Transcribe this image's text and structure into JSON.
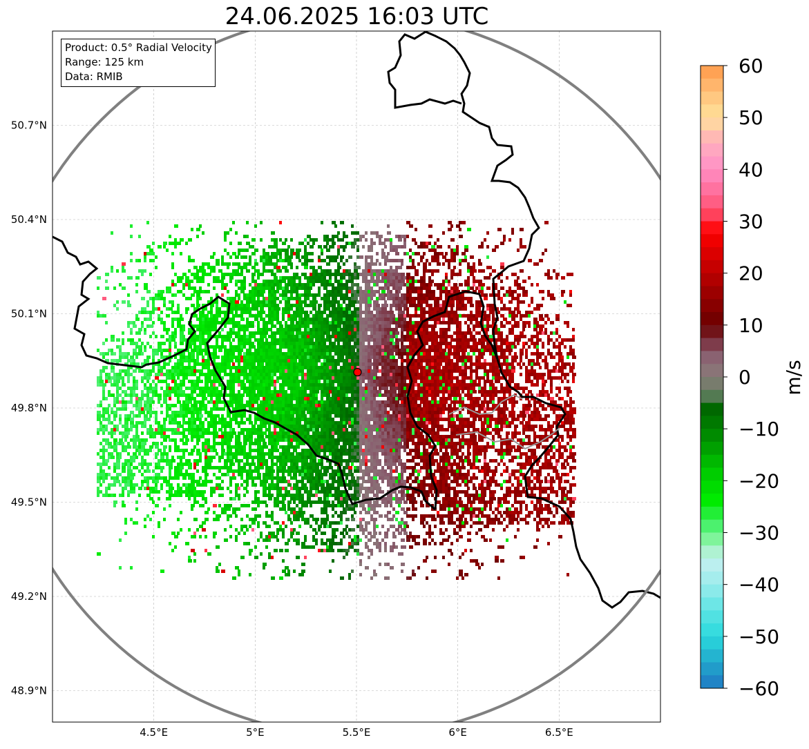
{
  "title": "24.06.2025 16:03 UTC",
  "info_box": {
    "lines": [
      "Product: 0.5° Radial Velocity",
      "Range: 125 km",
      "Data: RMIB"
    ]
  },
  "chart_data": {
    "type": "heatmap",
    "title": "24.06.2025 16:03 UTC",
    "x_axis": {
      "range": [
        4.0,
        7.0
      ],
      "ticks": [
        4.5,
        5.0,
        5.5,
        6.0,
        6.5
      ],
      "tick_labels": [
        "4.5°E",
        "5°E",
        "5.5°E",
        "6°E",
        "6.5°E"
      ]
    },
    "y_axis": {
      "range": [
        48.8,
        51.0
      ],
      "ticks": [
        48.9,
        49.2,
        49.5,
        49.8,
        50.1,
        50.4,
        50.7
      ],
      "tick_labels": [
        "48.9°N",
        "49.2°N",
        "49.5°N",
        "49.8°N",
        "50.1°N",
        "50.4°N",
        "50.7°N"
      ]
    },
    "grid": true,
    "radar_site": {
      "lon": 5.505,
      "lat": 49.914
    },
    "colorbar": {
      "label": "m/s",
      "min": -60,
      "max": 60,
      "ticks": [
        60,
        50,
        40,
        30,
        20,
        10,
        0,
        -10,
        -20,
        -30,
        -40,
        -50,
        -60
      ],
      "tick_labels": [
        "60",
        "50",
        "40",
        "30",
        "20",
        "10",
        "0",
        "−10",
        "−20",
        "−30",
        "−40",
        "−50",
        "−60"
      ],
      "color_stops": [
        {
          "v": -60,
          "c": "#1f78c4"
        },
        {
          "v": -55,
          "c": "#22a8cc"
        },
        {
          "v": -50,
          "c": "#2ad9dd"
        },
        {
          "v": -45,
          "c": "#5ee4e4"
        },
        {
          "v": -40,
          "c": "#9aecec"
        },
        {
          "v": -35,
          "c": "#c6f0f0"
        },
        {
          "v": -32,
          "c": "#8ff5a8"
        },
        {
          "v": -28,
          "c": "#3cf060"
        },
        {
          "v": -24,
          "c": "#00ec00"
        },
        {
          "v": -18,
          "c": "#00c800"
        },
        {
          "v": -12,
          "c": "#009000"
        },
        {
          "v": -6,
          "c": "#006600"
        },
        {
          "v": -4,
          "c": "#4f7a4f"
        },
        {
          "v": 0,
          "c": "#8a7d7a"
        },
        {
          "v": 4,
          "c": "#8a6070"
        },
        {
          "v": 6,
          "c": "#7f4050"
        },
        {
          "v": 10,
          "c": "#6a0000"
        },
        {
          "v": 16,
          "c": "#9a0000"
        },
        {
          "v": 22,
          "c": "#cc0000"
        },
        {
          "v": 28,
          "c": "#ff0000"
        },
        {
          "v": 32,
          "c": "#ff5070"
        },
        {
          "v": 38,
          "c": "#ff80b4"
        },
        {
          "v": 42,
          "c": "#ff9cc8"
        },
        {
          "v": 46,
          "c": "#ffb6b6"
        },
        {
          "v": 50,
          "c": "#ffe29a"
        },
        {
          "v": 55,
          "c": "#ffbf78"
        },
        {
          "v": 60,
          "c": "#ff9848"
        }
      ]
    },
    "range_ring_color": "#808080",
    "border_color": "#000000",
    "velocity_regions": [
      {
        "name": "approaching (green)",
        "lon": [
          4.25,
          5.5
        ],
        "lat": [
          49.45,
          50.38
        ],
        "velocity": -14
      },
      {
        "name": "receding (red/brown)",
        "lon": [
          5.5,
          6.5
        ],
        "lat": [
          49.35,
          50.35
        ],
        "velocity": 10
      }
    ]
  }
}
